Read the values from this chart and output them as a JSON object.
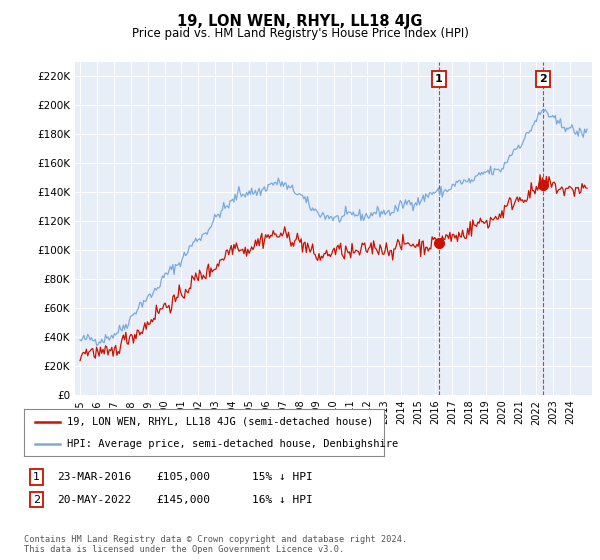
{
  "title": "19, LON WEN, RHYL, LL18 4JG",
  "subtitle": "Price paid vs. HM Land Registry's House Price Index (HPI)",
  "ylabel_ticks": [
    "£0",
    "£20K",
    "£40K",
    "£60K",
    "£80K",
    "£100K",
    "£120K",
    "£140K",
    "£160K",
    "£180K",
    "£200K",
    "£220K"
  ],
  "ytick_vals": [
    0,
    20000,
    40000,
    60000,
    80000,
    100000,
    120000,
    140000,
    160000,
    180000,
    200000,
    220000
  ],
  "ylim": [
    0,
    230000
  ],
  "xlim_start": 1994.7,
  "xlim_end": 2025.3,
  "hpi_color": "#7aaadd",
  "price_color": "#cc1100",
  "transaction1_date": 2016.22,
  "transaction1_price": 105000,
  "transaction2_date": 2022.38,
  "transaction2_price": 145000,
  "legend_label1": "19, LON WEN, RHYL, LL18 4JG (semi-detached house)",
  "legend_label2": "HPI: Average price, semi-detached house, Denbighshire",
  "table_row1": [
    "1",
    "23-MAR-2016",
    "£105,000",
    "15% ↓ HPI"
  ],
  "table_row2": [
    "2",
    "20-MAY-2022",
    "£145,000",
    "16% ↓ HPI"
  ],
  "footer": "Contains HM Land Registry data © Crown copyright and database right 2024.\nThis data is licensed under the Open Government Licence v3.0.",
  "background_color": "#ffffff",
  "plot_bg_color": "#e8eef8"
}
